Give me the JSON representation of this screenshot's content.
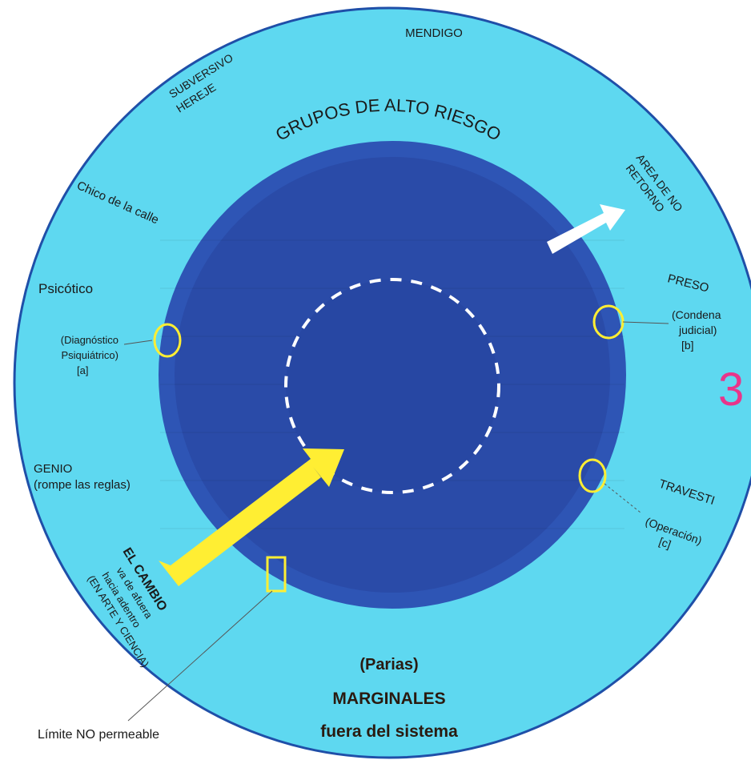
{
  "colors": {
    "outer_ring": "#5ed8f0",
    "outer_border": "#1f4fa8",
    "middle_disc": "#2e55b5",
    "inner_disc": "#2a4ba8",
    "core_disc": "#2747a3",
    "highlight_marker": "#ffee33",
    "change_arrow": "#ffee33",
    "return_arrow": "#ffffff",
    "dashed_limit": "#ffffff",
    "page_number": "#e8358a",
    "bottom_title": "#2a1a10"
  },
  "labels": {
    "mendigo": "MENDIGO",
    "subversivo": "SUBVERSIVO",
    "hereje": "HEREJE",
    "grupos_alto_riesgo": "GRUPOS DE ALTO RIESGO",
    "area_no_retorno_1": "AREA DE NO",
    "area_no_retorno_2": "RETORNO",
    "chico_calle": "Chico de la calle",
    "psicotico": "Psicótico",
    "diagnostico_1": "(Diagnóstico",
    "diagnostico_2": "Psiquiátrico)",
    "diagnostico_3": "[a]",
    "preso": "PRESO",
    "condena_1": "(Condena",
    "condena_2": "judicial)",
    "condena_3": "[b]",
    "page_number": "3",
    "genio_1": "GENIO",
    "genio_2": "(rompe las reglas)",
    "travesti": "TRAVESTI",
    "operacion_1": "(Operación)",
    "operacion_2": "[c]",
    "cambio_1": "EL CAMBIO",
    "cambio_2": "va de afuera",
    "cambio_3": "hacia adentro",
    "cambio_4": "(EN ARTE Y CIENCIA)",
    "limite": "Límite NO permeable",
    "parias": "(Parias)",
    "marginales": "MARGINALES",
    "fuera_sistema": "fuera del sistema"
  }
}
